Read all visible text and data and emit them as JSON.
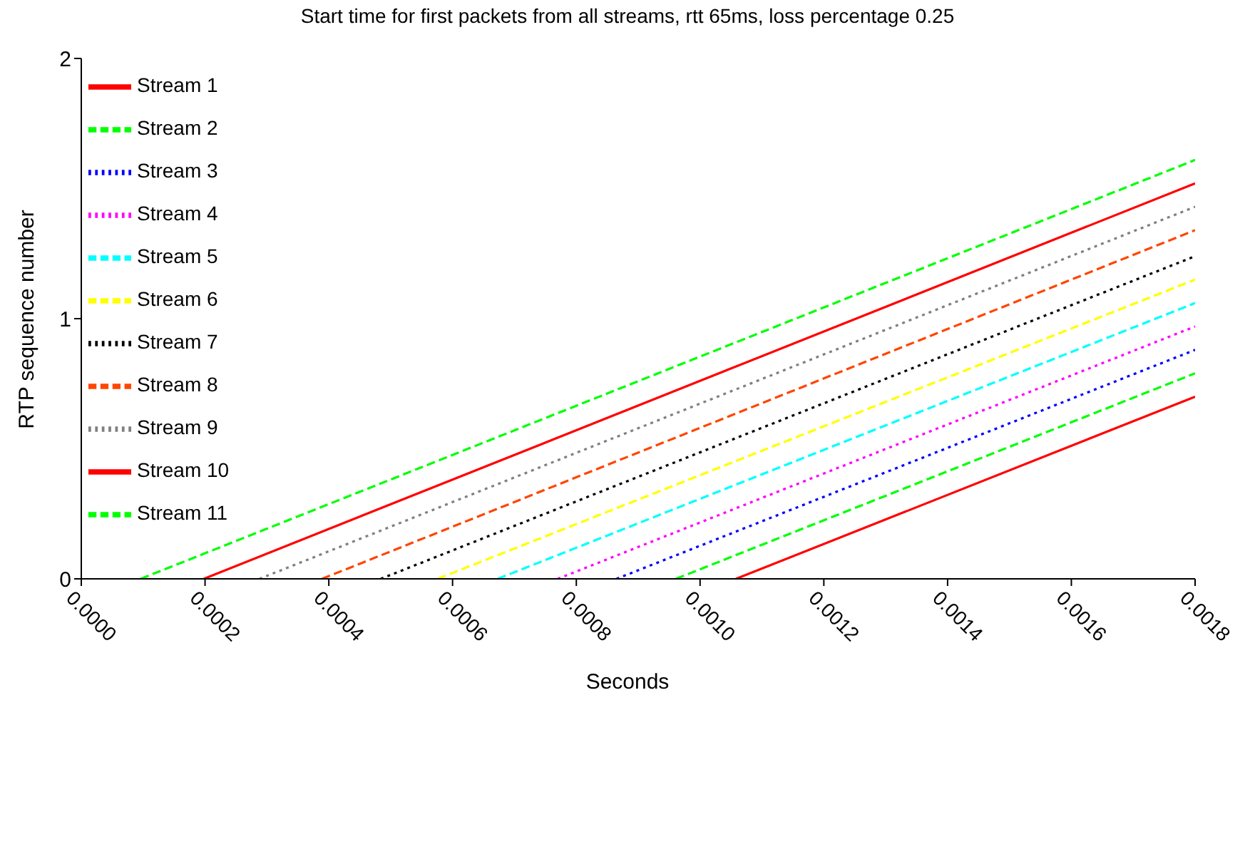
{
  "chart_data": {
    "type": "line",
    "title": "Start time for first packets from all streams, rtt 65ms, loss percentage 0.25",
    "xlabel": "Seconds",
    "ylabel": "RTP sequence number",
    "xlim": [
      0,
      0.0018
    ],
    "ylim": [
      0,
      2
    ],
    "xticks": [
      {
        "value": 0,
        "label": "0.0000"
      },
      {
        "value": 0.0002,
        "label": "0.0002"
      },
      {
        "value": 0.0004,
        "label": "0.0004"
      },
      {
        "value": 0.0006,
        "label": "0.0006"
      },
      {
        "value": 0.0008,
        "label": "0.0008"
      },
      {
        "value": 0.001,
        "label": "0.0010"
      },
      {
        "value": 0.0012,
        "label": "0.0012"
      },
      {
        "value": 0.0014,
        "label": "0.0014"
      },
      {
        "value": 0.0016,
        "label": "0.0016"
      },
      {
        "value": 0.0018,
        "label": "0.0018"
      }
    ],
    "yticks": [
      0,
      1,
      2
    ],
    "grid": false,
    "legend": "top left",
    "marker": "none",
    "series": [
      {
        "name": "Stream 1",
        "color": "#ff0000",
        "line_style": "solid",
        "x": [
          0.001058,
          0.0018
        ],
        "values": [
          0,
          0.7
        ]
      },
      {
        "name": "Stream 2",
        "color": "#00ff00",
        "line_style": "dashed",
        "x": [
          0.000961,
          0.0018
        ],
        "values": [
          0,
          0.79
        ]
      },
      {
        "name": "Stream 3",
        "color": "#0000ff",
        "line_style": "dotted",
        "x": [
          0.000865,
          0.0018
        ],
        "values": [
          0,
          0.88
        ]
      },
      {
        "name": "Stream 4",
        "color": "#ff00ff",
        "line_style": "dotted",
        "x": [
          0.00077,
          0.0018
        ],
        "values": [
          0,
          0.97
        ]
      },
      {
        "name": "Stream 5",
        "color": "#00ffff",
        "line_style": "dashed",
        "x": [
          0.000673,
          0.0018
        ],
        "values": [
          0,
          1.06
        ]
      },
      {
        "name": "Stream 6",
        "color": "#ffff00",
        "line_style": "dashed",
        "x": [
          0.000576,
          0.0018
        ],
        "values": [
          0,
          1.15
        ]
      },
      {
        "name": "Stream 7",
        "color": "#000000",
        "line_style": "dotted",
        "x": [
          0.000484,
          0.0018
        ],
        "values": [
          0,
          1.24
        ]
      },
      {
        "name": "Stream 8",
        "color": "#ff4500",
        "line_style": "dashed",
        "x": [
          0.000389,
          0.0018
        ],
        "values": [
          0,
          1.34
        ]
      },
      {
        "name": "Stream 9",
        "color": "#808080",
        "line_style": "dotted",
        "x": [
          0.000288,
          0.0018
        ],
        "values": [
          0,
          1.43
        ]
      },
      {
        "name": "Stream 10",
        "color": "#ff0000",
        "line_style": "solid",
        "x": [
          0.000198,
          0.0018
        ],
        "values": [
          0,
          1.52
        ]
      },
      {
        "name": "Stream 11",
        "color": "#00ff00",
        "line_style": "dashed",
        "x": [
          9.6e-05,
          0.0018
        ],
        "values": [
          0,
          1.61
        ]
      }
    ]
  }
}
